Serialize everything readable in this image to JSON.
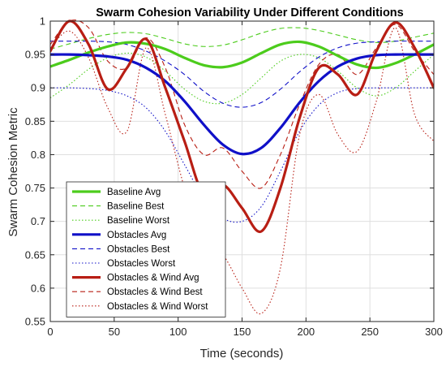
{
  "chart_data": {
    "type": "line",
    "title": "Swarm Cohesion Variability Under Different Conditions",
    "xlabel": "Time (seconds)",
    "ylabel": "Swarm Cohesion Metric",
    "xlim": [
      0,
      300
    ],
    "ylim": [
      0.55,
      1
    ],
    "xticks": [
      0,
      50,
      100,
      150,
      200,
      250,
      300
    ],
    "yticks": [
      0.55,
      0.6,
      0.65,
      0.7,
      0.75,
      0.8,
      0.85,
      0.9,
      0.95,
      1
    ],
    "xtick_labels": [
      "0",
      "50",
      "100",
      "150",
      "200",
      "250",
      "300"
    ],
    "ytick_labels": [
      "0.55",
      "0.6",
      "0.65",
      "0.7",
      "0.75",
      "0.8",
      "0.85",
      "0.9",
      "0.95",
      "1"
    ],
    "grid": true,
    "legend_position": "bottom-left",
    "series": [
      {
        "name": "Baseline Avg",
        "color": "#4ccc1c",
        "style": "solid",
        "width": "thick",
        "x": [
          0,
          15,
          30,
          45,
          60,
          75,
          90,
          105,
          120,
          135,
          150,
          165,
          180,
          195,
          210,
          225,
          240,
          255,
          270,
          285,
          300
        ],
        "y": [
          0.932,
          0.942,
          0.953,
          0.962,
          0.968,
          0.966,
          0.958,
          0.945,
          0.934,
          0.931,
          0.938,
          0.952,
          0.965,
          0.969,
          0.962,
          0.948,
          0.935,
          0.93,
          0.937,
          0.95,
          0.965
        ]
      },
      {
        "name": "Baseline Best",
        "color": "#4ccc1c",
        "style": "dashed",
        "width": "thin",
        "x": [
          0,
          15,
          30,
          45,
          60,
          75,
          90,
          105,
          120,
          135,
          150,
          165,
          180,
          195,
          210,
          225,
          240,
          255,
          270,
          285,
          300
        ],
        "y": [
          0.958,
          0.966,
          0.974,
          0.98,
          0.983,
          0.981,
          0.974,
          0.966,
          0.962,
          0.964,
          0.972,
          0.982,
          0.989,
          0.99,
          0.986,
          0.979,
          0.972,
          0.968,
          0.97,
          0.976,
          0.982
        ]
      },
      {
        "name": "Baseline Worst",
        "color": "#4ccc1c",
        "style": "dotted",
        "width": "thin",
        "x": [
          0,
          15,
          30,
          45,
          60,
          75,
          90,
          105,
          120,
          135,
          150,
          165,
          180,
          195,
          210,
          225,
          240,
          255,
          270,
          285,
          300
        ],
        "y": [
          0.885,
          0.905,
          0.928,
          0.945,
          0.952,
          0.946,
          0.925,
          0.898,
          0.88,
          0.877,
          0.89,
          0.915,
          0.94,
          0.95,
          0.945,
          0.925,
          0.9,
          0.888,
          0.9,
          0.925,
          0.95
        ]
      },
      {
        "name": "Obstacles Avg",
        "color": "#1010c8",
        "style": "solid",
        "width": "thick",
        "x": [
          0,
          15,
          30,
          45,
          60,
          75,
          90,
          105,
          120,
          135,
          150,
          165,
          180,
          195,
          210,
          225,
          240,
          255,
          270,
          285,
          300
        ],
        "y": [
          0.95,
          0.95,
          0.949,
          0.947,
          0.942,
          0.93,
          0.91,
          0.88,
          0.845,
          0.815,
          0.801,
          0.81,
          0.84,
          0.878,
          0.91,
          0.932,
          0.944,
          0.949,
          0.95,
          0.95,
          0.95
        ]
      },
      {
        "name": "Obstacles Best",
        "color": "#1010c8",
        "style": "dashed",
        "width": "thin",
        "x": [
          0,
          15,
          30,
          45,
          60,
          75,
          90,
          105,
          120,
          135,
          150,
          165,
          180,
          195,
          210,
          225,
          240,
          255,
          270,
          285,
          300
        ],
        "y": [
          0.97,
          0.97,
          0.97,
          0.969,
          0.965,
          0.955,
          0.94,
          0.92,
          0.895,
          0.877,
          0.871,
          0.878,
          0.898,
          0.924,
          0.946,
          0.96,
          0.967,
          0.969,
          0.97,
          0.97,
          0.97
        ]
      },
      {
        "name": "Obstacles Worst",
        "color": "#1010c8",
        "style": "dotted",
        "width": "thin",
        "x": [
          0,
          15,
          30,
          45,
          60,
          75,
          90,
          105,
          120,
          135,
          150,
          165,
          180,
          195,
          210,
          225,
          240,
          255,
          270,
          285,
          300
        ],
        "y": [
          0.9,
          0.9,
          0.899,
          0.896,
          0.888,
          0.87,
          0.835,
          0.785,
          0.735,
          0.705,
          0.7,
          0.722,
          0.775,
          0.835,
          0.874,
          0.893,
          0.899,
          0.9,
          0.9,
          0.9,
          0.9
        ]
      },
      {
        "name": "Obstacles & Wind Avg",
        "color": "#b81e14",
        "style": "solid",
        "width": "thick",
        "x": [
          0,
          15,
          30,
          45,
          60,
          75,
          90,
          105,
          120,
          135,
          150,
          165,
          180,
          195,
          210,
          225,
          240,
          255,
          270,
          285,
          300
        ],
        "y": [
          0.955,
          1.0,
          0.965,
          0.898,
          0.93,
          0.973,
          0.9,
          0.82,
          0.74,
          0.755,
          0.72,
          0.685,
          0.75,
          0.855,
          0.93,
          0.92,
          0.89,
          0.955,
          0.998,
          0.96,
          0.9
        ]
      },
      {
        "name": "Obstacles & Wind Best",
        "color": "#b81e14",
        "style": "dashed",
        "width": "thin",
        "x": [
          0,
          15,
          30,
          45,
          60,
          75,
          90,
          105,
          120,
          135,
          150,
          165,
          180,
          195,
          210,
          225,
          240,
          255,
          270,
          285,
          300
        ],
        "y": [
          0.965,
          1.0,
          0.99,
          0.94,
          0.93,
          0.975,
          0.93,
          0.845,
          0.8,
          0.81,
          0.775,
          0.75,
          0.8,
          0.875,
          0.935,
          0.95,
          0.92,
          0.96,
          0.995,
          0.955,
          0.92
        ]
      },
      {
        "name": "Obstacles & Wind Worst",
        "color": "#b81e14",
        "style": "dotted",
        "width": "thin",
        "x": [
          0,
          15,
          30,
          45,
          60,
          75,
          90,
          105,
          120,
          135,
          150,
          165,
          180,
          195,
          210,
          225,
          240,
          255,
          270,
          285,
          300
        ],
        "y": [
          0.96,
          0.985,
          0.945,
          0.87,
          0.835,
          0.96,
          0.86,
          0.75,
          0.67,
          0.65,
          0.6,
          0.562,
          0.63,
          0.83,
          0.89,
          0.83,
          0.805,
          0.88,
          0.99,
          0.86,
          0.82
        ]
      }
    ]
  }
}
